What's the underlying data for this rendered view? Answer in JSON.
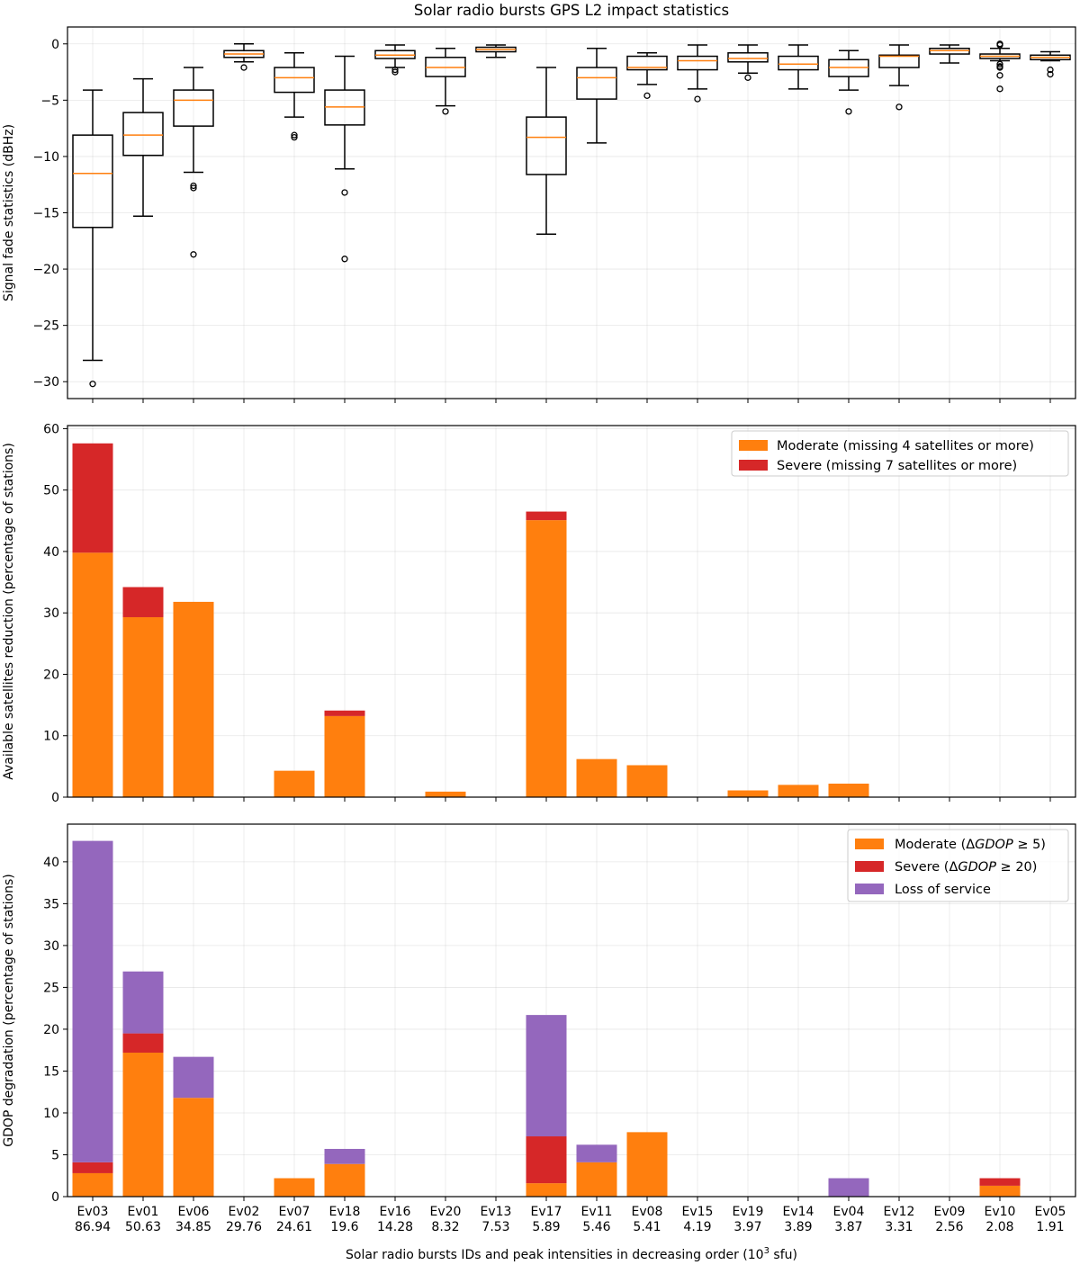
{
  "chart_data": [
    {
      "type": "box",
      "title": "Solar radio bursts GPS L2 impact statistics",
      "ylabel": "Signal fade statistics (dBHz)",
      "ylim": [
        -31.5,
        1.5
      ],
      "yticks": [
        0,
        -5,
        -10,
        -15,
        -20,
        -25,
        -30
      ],
      "grid": true,
      "categories": [
        "Ev03",
        "Ev01",
        "Ev06",
        "Ev02",
        "Ev07",
        "Ev18",
        "Ev16",
        "Ev20",
        "Ev13",
        "Ev17",
        "Ev11",
        "Ev08",
        "Ev15",
        "Ev19",
        "Ev14",
        "Ev04",
        "Ev12",
        "Ev09",
        "Ev10",
        "Ev05"
      ],
      "boxes": [
        {
          "whislo": -28.1,
          "q1": -16.3,
          "med": -11.5,
          "q3": -8.1,
          "whishi": -4.1,
          "fliers": [
            -30.2
          ]
        },
        {
          "whislo": -15.3,
          "q1": -9.9,
          "med": -8.1,
          "q3": -6.1,
          "whishi": -3.1,
          "fliers": []
        },
        {
          "whislo": -11.4,
          "q1": -7.3,
          "med": -5.0,
          "q3": -4.1,
          "whishi": -2.1,
          "fliers": [
            -12.6,
            -12.8,
            -18.7
          ]
        },
        {
          "whislo": -1.6,
          "q1": -1.2,
          "med": -0.9,
          "q3": -0.6,
          "whishi": 0.0,
          "fliers": [
            -2.1
          ]
        },
        {
          "whislo": -6.5,
          "q1": -4.3,
          "med": -3.0,
          "q3": -2.1,
          "whishi": -0.8,
          "fliers": [
            -8.1,
            -8.3
          ]
        },
        {
          "whislo": -11.1,
          "q1": -7.2,
          "med": -5.6,
          "q3": -4.1,
          "whishi": -1.1,
          "fliers": [
            -13.2,
            -19.1
          ]
        },
        {
          "whislo": -2.1,
          "q1": -1.3,
          "med": -1.0,
          "q3": -0.6,
          "whishi": -0.1,
          "fliers": [
            -2.3,
            -2.5
          ]
        },
        {
          "whislo": -5.5,
          "q1": -2.9,
          "med": -2.1,
          "q3": -1.2,
          "whishi": -0.4,
          "fliers": [
            -6.0
          ]
        },
        {
          "whislo": -1.2,
          "q1": -0.7,
          "med": -0.5,
          "q3": -0.3,
          "whishi": -0.1,
          "fliers": []
        },
        {
          "whislo": -16.9,
          "q1": -11.6,
          "med": -8.3,
          "q3": -6.5,
          "whishi": -2.1,
          "fliers": []
        },
        {
          "whislo": -8.8,
          "q1": -4.9,
          "med": -3.0,
          "q3": -2.1,
          "whishi": -0.4,
          "fliers": []
        },
        {
          "whislo": -3.6,
          "q1": -2.3,
          "med": -2.1,
          "q3": -1.1,
          "whishi": -0.8,
          "fliers": [
            -4.6
          ]
        },
        {
          "whislo": -4.0,
          "q1": -2.3,
          "med": -1.5,
          "q3": -1.1,
          "whishi": -0.1,
          "fliers": [
            -4.9
          ]
        },
        {
          "whislo": -2.6,
          "q1": -1.6,
          "med": -1.3,
          "q3": -0.8,
          "whishi": -0.1,
          "fliers": [
            -3.0
          ]
        },
        {
          "whislo": -4.0,
          "q1": -2.3,
          "med": -1.8,
          "q3": -1.1,
          "whishi": -0.1,
          "fliers": []
        },
        {
          "whislo": -4.1,
          "q1": -2.9,
          "med": -2.1,
          "q3": -1.4,
          "whishi": -0.6,
          "fliers": [
            -6.0
          ]
        },
        {
          "whislo": -3.7,
          "q1": -2.1,
          "med": -1.1,
          "q3": -1.0,
          "whishi": -0.1,
          "fliers": [
            -5.6
          ]
        },
        {
          "whislo": -1.7,
          "q1": -0.9,
          "med": -0.6,
          "q3": -0.4,
          "whishi": -0.1,
          "fliers": []
        },
        {
          "whislo": -1.5,
          "q1": -1.3,
          "med": -1.1,
          "q3": -0.9,
          "whishi": -0.4,
          "fliers": [
            -0.1,
            0.0,
            -1.8,
            -2.0,
            -2.1,
            -2.8,
            -4.0
          ]
        },
        {
          "whislo": -1.5,
          "q1": -1.4,
          "med": -1.2,
          "q3": -1.0,
          "whishi": -0.7,
          "fliers": [
            -2.3,
            -2.7
          ]
        }
      ]
    },
    {
      "type": "stacked-bar",
      "ylabel": "Available satellites reduction (percentage of stations)",
      "ylim": [
        0,
        60.5
      ],
      "yticks": [
        0,
        10,
        20,
        30,
        40,
        50,
        60
      ],
      "grid": true,
      "legend_position": "top-right",
      "categories": [
        "Ev03",
        "Ev01",
        "Ev06",
        "Ev02",
        "Ev07",
        "Ev18",
        "Ev16",
        "Ev20",
        "Ev13",
        "Ev17",
        "Ev11",
        "Ev08",
        "Ev15",
        "Ev19",
        "Ev14",
        "Ev04",
        "Ev12",
        "Ev09",
        "Ev10",
        "Ev05"
      ],
      "series": [
        {
          "name": "Moderate (missing 4 satellites or more)",
          "color": "#ff7f0e",
          "values": [
            39.8,
            29.3,
            31.8,
            0,
            4.3,
            13.2,
            0,
            0.9,
            0,
            45.1,
            6.2,
            5.2,
            0,
            1.1,
            2.0,
            2.2,
            0,
            0,
            0,
            0
          ]
        },
        {
          "name": "Severe (missing 7 satellites or more)",
          "color": "#d62728",
          "values": [
            17.8,
            4.9,
            0,
            0,
            0,
            0.9,
            0,
            0,
            0,
            1.4,
            0,
            0,
            0,
            0,
            0,
            0,
            0,
            0,
            0,
            0
          ]
        }
      ]
    },
    {
      "type": "stacked-bar",
      "ylabel": "GDOP degradation (percentage of stations)",
      "ylim": [
        0,
        44.5
      ],
      "yticks": [
        0,
        5,
        10,
        15,
        20,
        25,
        30,
        35,
        40
      ],
      "grid": true,
      "legend_position": "top-right",
      "xlabel": "Solar radio bursts IDs and peak intensities in decreasing order (10",
      "xlabel_sup": "3",
      "xlabel_end": " sfu)",
      "categories": [
        "Ev03",
        "Ev01",
        "Ev06",
        "Ev02",
        "Ev07",
        "Ev18",
        "Ev16",
        "Ev20",
        "Ev13",
        "Ev17",
        "Ev11",
        "Ev08",
        "Ev15",
        "Ev19",
        "Ev14",
        "Ev04",
        "Ev12",
        "Ev09",
        "Ev10",
        "Ev05"
      ],
      "peak_intensities": [
        "86.94",
        "50.63",
        "34.85",
        "29.76",
        "24.61",
        "19.6",
        "14.28",
        "8.32",
        "7.53",
        "5.89",
        "5.46",
        "5.41",
        "4.19",
        "3.97",
        "3.89",
        "3.87",
        "3.31",
        "2.56",
        "2.08",
        "1.91"
      ],
      "series": [
        {
          "name": "Moderate (ΔGDOP ≥ 5)",
          "label_prefix": "Moderate (Δ",
          "label_italic": "GDOP",
          "label_suffix": " ≥ 5)",
          "color": "#ff7f0e",
          "values": [
            2.8,
            17.2,
            11.8,
            0,
            2.2,
            3.9,
            0,
            0,
            0,
            1.6,
            4.1,
            7.7,
            0,
            0,
            0,
            0,
            0,
            0,
            1.3,
            0
          ]
        },
        {
          "name": "Severe (ΔGDOP ≥ 20)",
          "label_prefix": "Severe (Δ",
          "label_italic": "GDOP",
          "label_suffix": " ≥ 20)",
          "color": "#d62728",
          "values": [
            1.3,
            2.3,
            0,
            0,
            0,
            0,
            0,
            0,
            0,
            5.6,
            0,
            0,
            0,
            0,
            0,
            0,
            0,
            0,
            0.9,
            0
          ]
        },
        {
          "name": "Loss of service",
          "label_prefix": "Loss of service",
          "label_italic": "",
          "label_suffix": "",
          "color": "#9467bd",
          "values": [
            38.4,
            7.4,
            4.9,
            0,
            0,
            1.8,
            0,
            0,
            0,
            14.5,
            2.1,
            0,
            0,
            0,
            0,
            2.2,
            0,
            0,
            0,
            0
          ]
        }
      ]
    }
  ]
}
